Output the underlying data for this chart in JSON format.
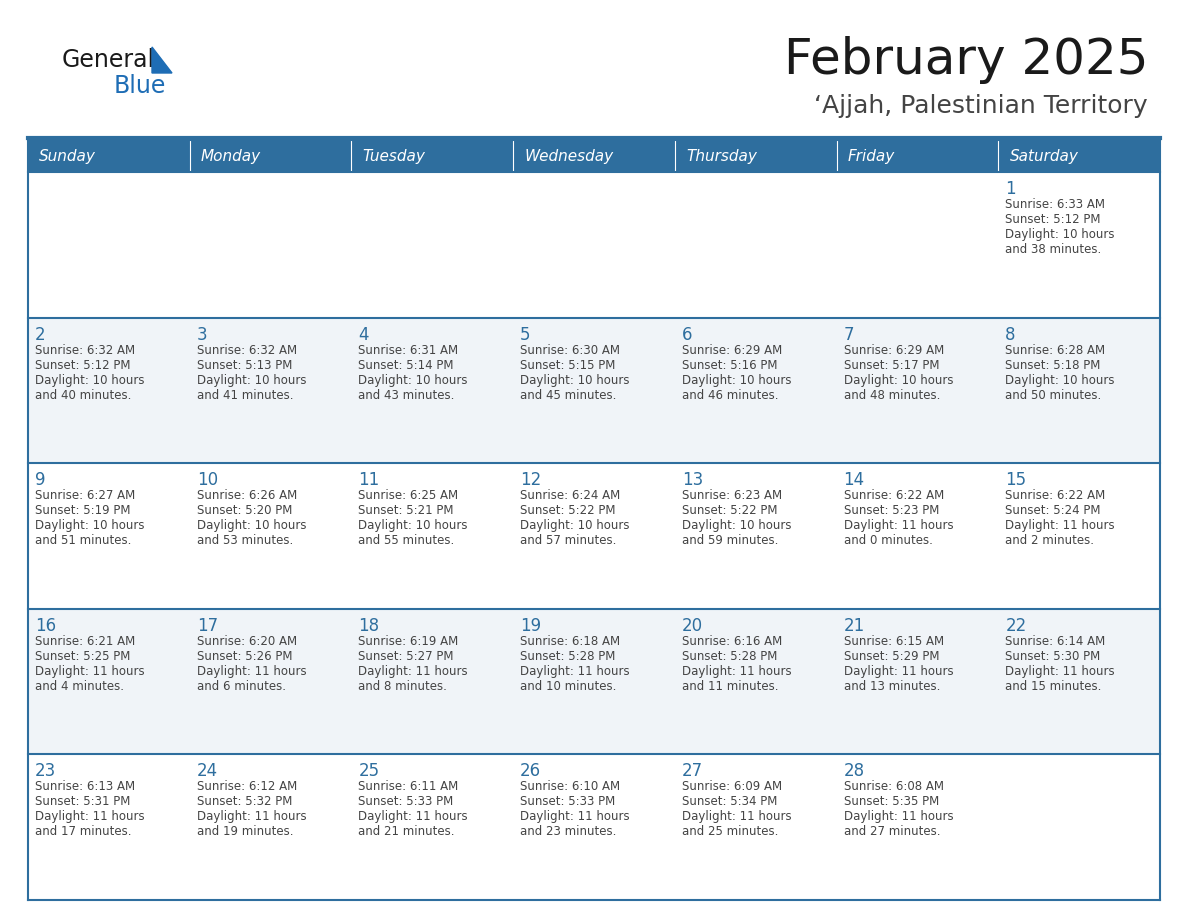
{
  "title": "February 2025",
  "subtitle": "‘Ajjah, Palestinian Territory",
  "header_bg": "#2E6E9E",
  "header_text": "#FFFFFF",
  "cell_bg_white": "#FFFFFF",
  "cell_bg_light": "#F0F4F8",
  "day_number_color": "#2E6E9E",
  "text_color": "#444444",
  "border_color": "#2E6E9E",
  "days_of_week": [
    "Sunday",
    "Monday",
    "Tuesday",
    "Wednesday",
    "Thursday",
    "Friday",
    "Saturday"
  ],
  "calendar": [
    [
      {
        "day": "",
        "info": ""
      },
      {
        "day": "",
        "info": ""
      },
      {
        "day": "",
        "info": ""
      },
      {
        "day": "",
        "info": ""
      },
      {
        "day": "",
        "info": ""
      },
      {
        "day": "",
        "info": ""
      },
      {
        "day": "1",
        "info": "Sunrise: 6:33 AM\nSunset: 5:12 PM\nDaylight: 10 hours\nand 38 minutes."
      }
    ],
    [
      {
        "day": "2",
        "info": "Sunrise: 6:32 AM\nSunset: 5:12 PM\nDaylight: 10 hours\nand 40 minutes."
      },
      {
        "day": "3",
        "info": "Sunrise: 6:32 AM\nSunset: 5:13 PM\nDaylight: 10 hours\nand 41 minutes."
      },
      {
        "day": "4",
        "info": "Sunrise: 6:31 AM\nSunset: 5:14 PM\nDaylight: 10 hours\nand 43 minutes."
      },
      {
        "day": "5",
        "info": "Sunrise: 6:30 AM\nSunset: 5:15 PM\nDaylight: 10 hours\nand 45 minutes."
      },
      {
        "day": "6",
        "info": "Sunrise: 6:29 AM\nSunset: 5:16 PM\nDaylight: 10 hours\nand 46 minutes."
      },
      {
        "day": "7",
        "info": "Sunrise: 6:29 AM\nSunset: 5:17 PM\nDaylight: 10 hours\nand 48 minutes."
      },
      {
        "day": "8",
        "info": "Sunrise: 6:28 AM\nSunset: 5:18 PM\nDaylight: 10 hours\nand 50 minutes."
      }
    ],
    [
      {
        "day": "9",
        "info": "Sunrise: 6:27 AM\nSunset: 5:19 PM\nDaylight: 10 hours\nand 51 minutes."
      },
      {
        "day": "10",
        "info": "Sunrise: 6:26 AM\nSunset: 5:20 PM\nDaylight: 10 hours\nand 53 minutes."
      },
      {
        "day": "11",
        "info": "Sunrise: 6:25 AM\nSunset: 5:21 PM\nDaylight: 10 hours\nand 55 minutes."
      },
      {
        "day": "12",
        "info": "Sunrise: 6:24 AM\nSunset: 5:22 PM\nDaylight: 10 hours\nand 57 minutes."
      },
      {
        "day": "13",
        "info": "Sunrise: 6:23 AM\nSunset: 5:22 PM\nDaylight: 10 hours\nand 59 minutes."
      },
      {
        "day": "14",
        "info": "Sunrise: 6:22 AM\nSunset: 5:23 PM\nDaylight: 11 hours\nand 0 minutes."
      },
      {
        "day": "15",
        "info": "Sunrise: 6:22 AM\nSunset: 5:24 PM\nDaylight: 11 hours\nand 2 minutes."
      }
    ],
    [
      {
        "day": "16",
        "info": "Sunrise: 6:21 AM\nSunset: 5:25 PM\nDaylight: 11 hours\nand 4 minutes."
      },
      {
        "day": "17",
        "info": "Sunrise: 6:20 AM\nSunset: 5:26 PM\nDaylight: 11 hours\nand 6 minutes."
      },
      {
        "day": "18",
        "info": "Sunrise: 6:19 AM\nSunset: 5:27 PM\nDaylight: 11 hours\nand 8 minutes."
      },
      {
        "day": "19",
        "info": "Sunrise: 6:18 AM\nSunset: 5:28 PM\nDaylight: 11 hours\nand 10 minutes."
      },
      {
        "day": "20",
        "info": "Sunrise: 6:16 AM\nSunset: 5:28 PM\nDaylight: 11 hours\nand 11 minutes."
      },
      {
        "day": "21",
        "info": "Sunrise: 6:15 AM\nSunset: 5:29 PM\nDaylight: 11 hours\nand 13 minutes."
      },
      {
        "day": "22",
        "info": "Sunrise: 6:14 AM\nSunset: 5:30 PM\nDaylight: 11 hours\nand 15 minutes."
      }
    ],
    [
      {
        "day": "23",
        "info": "Sunrise: 6:13 AM\nSunset: 5:31 PM\nDaylight: 11 hours\nand 17 minutes."
      },
      {
        "day": "24",
        "info": "Sunrise: 6:12 AM\nSunset: 5:32 PM\nDaylight: 11 hours\nand 19 minutes."
      },
      {
        "day": "25",
        "info": "Sunrise: 6:11 AM\nSunset: 5:33 PM\nDaylight: 11 hours\nand 21 minutes."
      },
      {
        "day": "26",
        "info": "Sunrise: 6:10 AM\nSunset: 5:33 PM\nDaylight: 11 hours\nand 23 minutes."
      },
      {
        "day": "27",
        "info": "Sunrise: 6:09 AM\nSunset: 5:34 PM\nDaylight: 11 hours\nand 25 minutes."
      },
      {
        "day": "28",
        "info": "Sunrise: 6:08 AM\nSunset: 5:35 PM\nDaylight: 11 hours\nand 27 minutes."
      },
      {
        "day": "",
        "info": ""
      }
    ]
  ],
  "logo_text_general": "General",
  "logo_text_blue": "Blue",
  "logo_color_general": "#1a1a1a",
  "logo_color_blue": "#1E6DB5",
  "logo_triangle_color": "#1E6DB5"
}
